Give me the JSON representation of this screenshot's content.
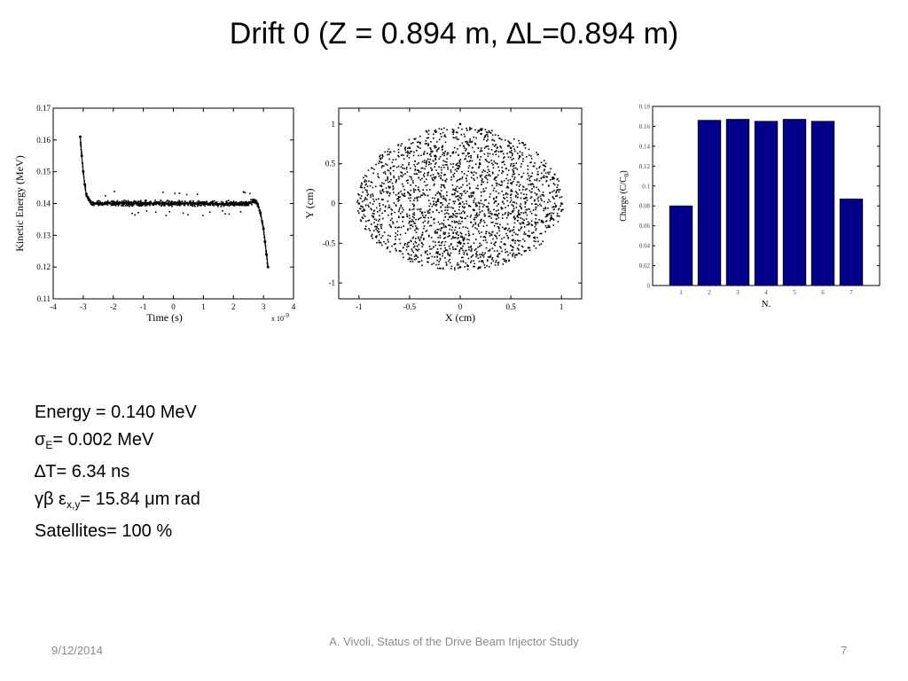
{
  "slide": {
    "title": "Drift 0 (Z = 0.894 m, ∆L=0.894 m)"
  },
  "chart_data": [
    {
      "type": "scatter",
      "xlabel": "Time  (s)",
      "ylabel": "Kinetic Energy  (MeV)",
      "xlim": [
        -4,
        4
      ],
      "ylim": [
        0.11,
        0.17
      ],
      "x_scale_note": "x 10",
      "x_scale_exp": "-9",
      "xticks": [
        "-4",
        "-3",
        "-2",
        "-1",
        "0",
        "1",
        "2",
        "3",
        "4"
      ],
      "yticks": [
        "0.11",
        "0.12",
        "0.13",
        "0.14",
        "0.15",
        "0.16",
        "0.17"
      ],
      "x": [
        -3.1,
        -3.05,
        -3.0,
        -2.95,
        -2.9,
        -2.85,
        -2.8,
        -2.7,
        -2.5,
        -2.0,
        -1.0,
        0.0,
        1.0,
        2.0,
        2.5,
        2.7,
        2.8,
        2.9,
        3.0,
        3.05,
        3.1,
        3.15
      ],
      "y": [
        0.161,
        0.155,
        0.15,
        0.146,
        0.143,
        0.142,
        0.141,
        0.14,
        0.14,
        0.14,
        0.14,
        0.14,
        0.14,
        0.14,
        0.14,
        0.141,
        0.14,
        0.137,
        0.132,
        0.128,
        0.124,
        0.12
      ]
    },
    {
      "type": "scatter",
      "xlabel": "X  (cm)",
      "ylabel": "Y  (cm)",
      "xlim": [
        -1.2,
        1.2
      ],
      "ylim": [
        -1.2,
        1.2
      ],
      "xticks": [
        "-1",
        "-0.5",
        "0",
        "0.5",
        "1"
      ],
      "yticks": [
        "-1",
        "-0.5",
        "0",
        "0.5",
        "1"
      ],
      "x": [
        -1.0,
        -0.5,
        0.0,
        0.5,
        1.0,
        0.0,
        0.0
      ],
      "y": [
        0.0,
        0.7,
        1.0,
        0.7,
        0.0,
        -0.8,
        0.0
      ]
    },
    {
      "type": "bar",
      "xlabel": "N.",
      "ylabel": "Charge (C/C",
      "ylabel_sub": "0",
      "ylabel_tail": ")",
      "ylim": [
        0,
        0.18
      ],
      "yticks": [
        "0",
        "0.02",
        "0.04",
        "0.06",
        "0.08",
        "0.1",
        "0.12",
        "0.14",
        "0.16",
        "0.18"
      ],
      "categories": [
        "1",
        "2",
        "3",
        "4",
        "5",
        "6",
        "7"
      ],
      "values": [
        0.08,
        0.166,
        0.167,
        0.165,
        0.167,
        0.165,
        0.087
      ],
      "bar_color": "#00008b"
    }
  ],
  "stats": {
    "energy": "Energy = 0.140 MeV",
    "sigma_symbol": "σ",
    "sigma_sub": "E",
    "sigma_value": "= 0.002 MeV",
    "dt": "∆T= 6.34 ns",
    "emit_symbols": "γβ ε",
    "emit_sub": "x,y",
    "emit_value": "= 15.84 μm rad",
    "satellites": "Satellites= 100 %"
  },
  "footer": {
    "date": "9/12/2014",
    "center": "A. Vivoli, Status of the Drive Beam Injector Study",
    "page": "7"
  }
}
